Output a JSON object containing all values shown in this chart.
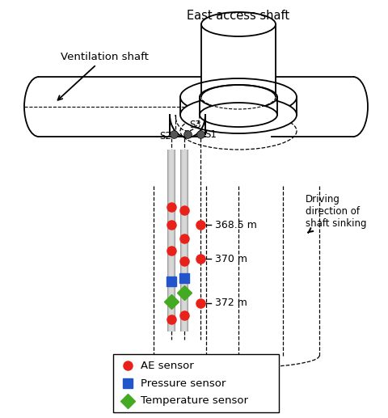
{
  "title": "East access shaft",
  "ventilation_label": "Ventilation shaft",
  "driving_label": "Driving\ndirection of\nshaft sinking",
  "legend_items": [
    {
      "label": "AE sensor",
      "color": "#e8221a",
      "marker": "o"
    },
    {
      "label": "Pressure sensor",
      "color": "#2255cc",
      "marker": "s"
    },
    {
      "label": "Temperature sensor",
      "color": "#44aa22",
      "marker": "D"
    }
  ],
  "bg_color": "#ffffff",
  "line_color": "#000000",
  "dark_gray": "#555555",
  "rod_gray": "#aaaaaa",
  "ae_color": "#e8221a",
  "pressure_color": "#2255cc",
  "temp_color": "#44aa22",
  "depth_labels": [
    "368.5 m",
    "370 m",
    "372 m"
  ],
  "sensor_names": [
    "S1",
    "S2",
    "S3"
  ]
}
